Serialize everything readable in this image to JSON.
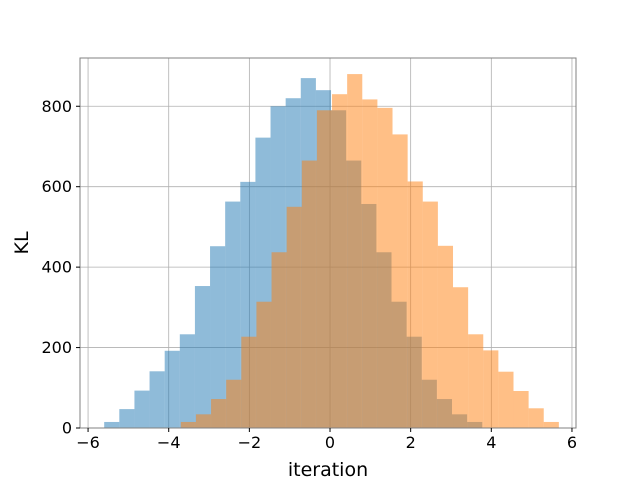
{
  "chart_data": {
    "type": "bar",
    "title": "",
    "xlabel": "iteration",
    "ylabel": "KL",
    "xlim": [
      -6.2,
      6.1
    ],
    "ylim": [
      0,
      920
    ],
    "xticks": [
      -6,
      -4,
      -2,
      0,
      2,
      4,
      6
    ],
    "yticks": [
      0,
      200,
      400,
      600,
      800
    ],
    "grid": true,
    "legend": "none",
    "bin_width": 0.375,
    "series": [
      {
        "color": "#1f77b4",
        "opacity": 0.5,
        "bin_start": -5.6,
        "values": [
          15,
          47,
          93,
          141,
          192,
          233,
          353,
          452,
          563,
          612,
          722,
          800,
          820,
          870,
          840,
          790,
          665,
          557,
          437,
          314,
          227,
          120,
          72,
          34,
          15
        ]
      },
      {
        "color": "#ff7f0e",
        "opacity": 0.5,
        "bin_start": -3.7,
        "values": [
          15,
          34,
          72,
          120,
          227,
          314,
          437,
          550,
          665,
          790,
          830,
          880,
          817,
          796,
          730,
          613,
          563,
          453,
          350,
          233,
          193,
          140,
          92,
          49,
          15
        ]
      }
    ]
  }
}
